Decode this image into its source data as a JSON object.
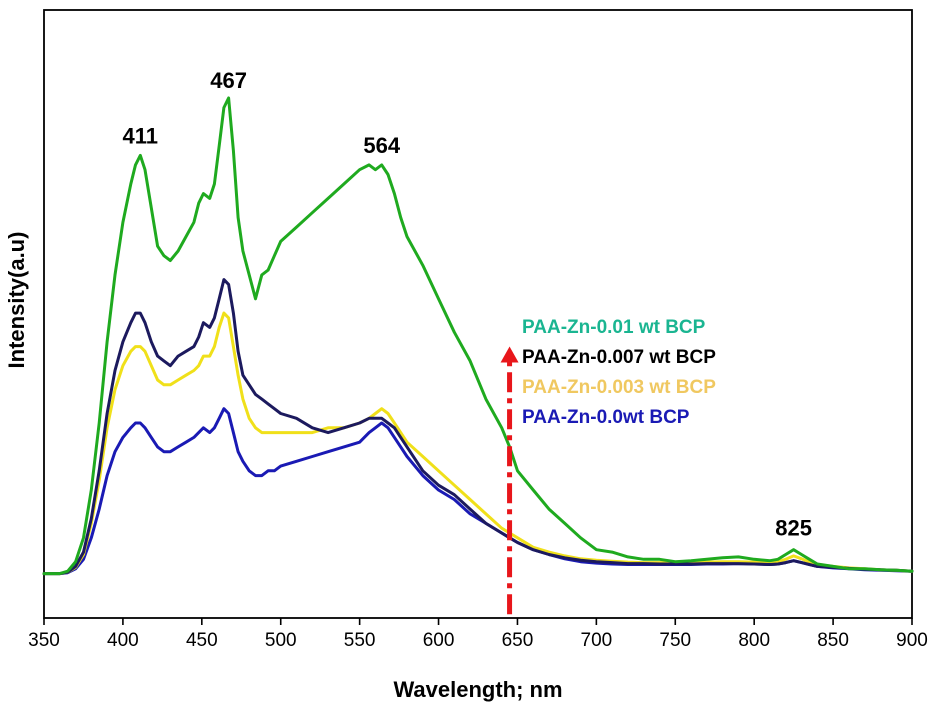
{
  "chart_data": {
    "type": "line",
    "title": "",
    "xlabel": "Wavelength; nm",
    "ylabel": "Intensity(a.u)",
    "xlim": [
      350,
      900
    ],
    "ylim": [
      0,
      100
    ],
    "xticks": [
      350,
      400,
      450,
      500,
      550,
      600,
      650,
      700,
      750,
      800,
      850,
      900
    ],
    "y_tick_labels_shown": false,
    "grid": false,
    "series": [
      {
        "name": "PAA-Zn-0.01 wt BCP",
        "color": "#1faa1f",
        "x": [
          350,
          360,
          365,
          370,
          375,
          380,
          385,
          390,
          395,
          400,
          405,
          408,
          411,
          414,
          418,
          422,
          426,
          430,
          435,
          440,
          445,
          448,
          451,
          455,
          458,
          461,
          464,
          467,
          470,
          473,
          476,
          480,
          484,
          488,
          492,
          496,
          500,
          510,
          520,
          530,
          540,
          550,
          556,
          560,
          564,
          568,
          572,
          576,
          580,
          590,
          600,
          610,
          620,
          630,
          640,
          645,
          650,
          660,
          670,
          680,
          690,
          700,
          710,
          720,
          730,
          740,
          750,
          760,
          770,
          780,
          790,
          800,
          810,
          815,
          820,
          825,
          830,
          835,
          840,
          850,
          860,
          870,
          880,
          890,
          900
        ],
        "y": [
          0.5,
          0.5,
          1,
          3,
          8,
          18,
          32,
          49,
          63,
          74,
          82,
          86,
          88,
          85,
          77,
          69,
          67,
          66,
          68,
          71,
          74,
          78,
          80,
          79,
          82,
          90,
          98,
          100,
          89,
          75,
          68,
          63,
          58,
          63,
          64,
          67,
          70,
          73,
          76,
          79,
          82,
          85,
          86,
          85,
          86,
          84,
          80,
          75,
          71,
          65,
          58,
          51,
          45,
          37,
          31,
          27,
          22,
          18,
          14,
          11,
          8,
          5.5,
          5,
          4,
          3.5,
          3.5,
          3,
          3.2,
          3.5,
          3.8,
          4,
          3.5,
          3.2,
          3.5,
          4.5,
          5.5,
          4.5,
          3.5,
          2.5,
          2,
          1.5,
          1.5,
          1.3,
          1.2,
          1
        ]
      },
      {
        "name": "PAA-Zn-0.007 wt BCP",
        "color": "#1c1a5e",
        "x": [
          350,
          360,
          365,
          370,
          375,
          380,
          385,
          390,
          395,
          400,
          405,
          408,
          411,
          414,
          418,
          422,
          426,
          430,
          435,
          440,
          445,
          448,
          451,
          455,
          458,
          461,
          464,
          467,
          470,
          473,
          476,
          480,
          484,
          488,
          492,
          496,
          500,
          510,
          520,
          530,
          540,
          550,
          556,
          560,
          564,
          568,
          572,
          576,
          580,
          590,
          600,
          610,
          620,
          630,
          640,
          645,
          650,
          660,
          670,
          680,
          690,
          700,
          710,
          720,
          730,
          740,
          750,
          760,
          770,
          780,
          790,
          800,
          810,
          815,
          820,
          825,
          830,
          835,
          840,
          850,
          860,
          870,
          880,
          890,
          900
        ],
        "y": [
          0.5,
          0.5,
          0.8,
          2,
          5,
          12,
          22,
          34,
          43,
          49,
          53,
          55,
          55,
          53,
          49,
          46,
          45,
          44,
          46,
          47,
          48,
          50,
          53,
          52,
          54,
          58,
          62,
          61,
          55,
          47,
          42,
          40,
          38,
          37,
          36,
          35,
          34,
          33,
          31,
          30,
          31,
          32,
          33,
          33,
          33,
          32,
          31,
          29,
          27,
          22,
          19,
          17,
          14,
          11,
          9,
          8,
          7,
          5.5,
          4.5,
          3.8,
          3.3,
          3,
          2.8,
          2.6,
          2.6,
          2.5,
          2.5,
          2.5,
          2.6,
          2.6,
          2.6,
          2.5,
          2.4,
          2.5,
          2.8,
          3.2,
          2.8,
          2.4,
          2,
          1.8,
          1.6,
          1.4,
          1.3,
          1.2,
          1
        ]
      },
      {
        "name": "PAA-Zn-0.003 wt BCP",
        "color": "#f0e01a",
        "x": [
          350,
          360,
          365,
          370,
          375,
          380,
          385,
          390,
          395,
          400,
          405,
          408,
          411,
          414,
          418,
          422,
          426,
          430,
          435,
          440,
          445,
          448,
          451,
          455,
          458,
          461,
          464,
          467,
          470,
          473,
          476,
          480,
          484,
          488,
          492,
          496,
          500,
          510,
          520,
          530,
          540,
          550,
          556,
          560,
          564,
          568,
          572,
          576,
          580,
          590,
          600,
          610,
          620,
          630,
          640,
          645,
          650,
          660,
          670,
          680,
          690,
          700,
          710,
          720,
          730,
          740,
          750,
          760,
          770,
          780,
          790,
          800,
          810,
          815,
          820,
          825,
          830,
          835,
          840,
          850,
          860,
          870,
          880,
          890,
          900
        ],
        "y": [
          0.5,
          0.5,
          0.8,
          1.8,
          4.5,
          11,
          20,
          31,
          39,
          44,
          47,
          48,
          48,
          47,
          44,
          41,
          40,
          40,
          41,
          42,
          43,
          44,
          46,
          46,
          48,
          52,
          55,
          54,
          48,
          42,
          37,
          33,
          31,
          30,
          30,
          30,
          30,
          30,
          30,
          31,
          31,
          32,
          33,
          34,
          35,
          34,
          32,
          30,
          28,
          25,
          22,
          19,
          16,
          13,
          10,
          9,
          8,
          6,
          5,
          4.2,
          3.6,
          3.3,
          3.1,
          2.9,
          2.8,
          2.8,
          2.8,
          2.8,
          2.9,
          3,
          3,
          2.9,
          2.8,
          3,
          3.5,
          4.2,
          3.6,
          2.9,
          2.4,
          2,
          1.7,
          1.5,
          1.3,
          1.2,
          1
        ]
      },
      {
        "name": "PAA-Zn-0.0wt BCP",
        "color": "#1a1ab4",
        "x": [
          350,
          360,
          365,
          370,
          375,
          380,
          385,
          390,
          395,
          400,
          405,
          408,
          411,
          414,
          418,
          422,
          426,
          430,
          435,
          440,
          445,
          448,
          451,
          455,
          458,
          461,
          464,
          467,
          470,
          473,
          476,
          480,
          484,
          488,
          492,
          496,
          500,
          510,
          520,
          530,
          540,
          550,
          556,
          560,
          564,
          568,
          572,
          576,
          580,
          590,
          600,
          610,
          620,
          630,
          640,
          645,
          650,
          660,
          670,
          680,
          690,
          700,
          710,
          720,
          730,
          740,
          750,
          760,
          770,
          780,
          790,
          800,
          810,
          815,
          820,
          825,
          830,
          835,
          840,
          850,
          860,
          870,
          880,
          890,
          900
        ],
        "y": [
          0.5,
          0.5,
          0.7,
          1.5,
          3.5,
          8,
          14,
          21,
          26,
          29,
          31,
          32,
          32,
          31,
          29,
          27,
          26,
          26,
          27,
          28,
          29,
          30,
          31,
          30,
          31,
          33,
          35,
          34,
          30,
          26,
          24,
          22,
          21,
          21,
          22,
          22,
          23,
          24,
          25,
          26,
          27,
          28,
          30,
          31,
          32,
          31,
          29,
          27,
          25,
          21,
          18,
          16,
          13,
          11,
          9,
          8,
          7,
          5.5,
          4.5,
          3.6,
          3,
          2.7,
          2.5,
          2.4,
          2.4,
          2.4,
          2.4,
          2.4,
          2.5,
          2.5,
          2.6,
          2.5,
          2.4,
          2.5,
          2.8,
          3.2,
          2.8,
          2.4,
          2,
          1.7,
          1.5,
          1.3,
          1.2,
          1.1,
          1
        ]
      }
    ],
    "annotations": [
      {
        "text": "411",
        "x": 411,
        "y": 88
      },
      {
        "text": "467",
        "x": 467,
        "y": 100
      },
      {
        "text": "564",
        "x": 564,
        "y": 86
      },
      {
        "text": "825",
        "x": 825,
        "y": 5.5
      }
    ],
    "arrow": {
      "x": 645,
      "from_y": -8,
      "to_y": 48,
      "color": "#e8161b",
      "direction": "up"
    },
    "legend": {
      "placement": "right-middle",
      "entries": [
        {
          "text": "PAA-Zn-0.01 wt BCP",
          "color": "#1ab591"
        },
        {
          "text": "PAA-Zn-0.007 wt BCP",
          "color": "#000000"
        },
        {
          "text": "PAA-Zn-0.003 wt BCP",
          "color": "#f0c860"
        },
        {
          "text": "PAA-Zn-0.0wt BCP",
          "color": "#1a1ab4"
        }
      ]
    }
  }
}
